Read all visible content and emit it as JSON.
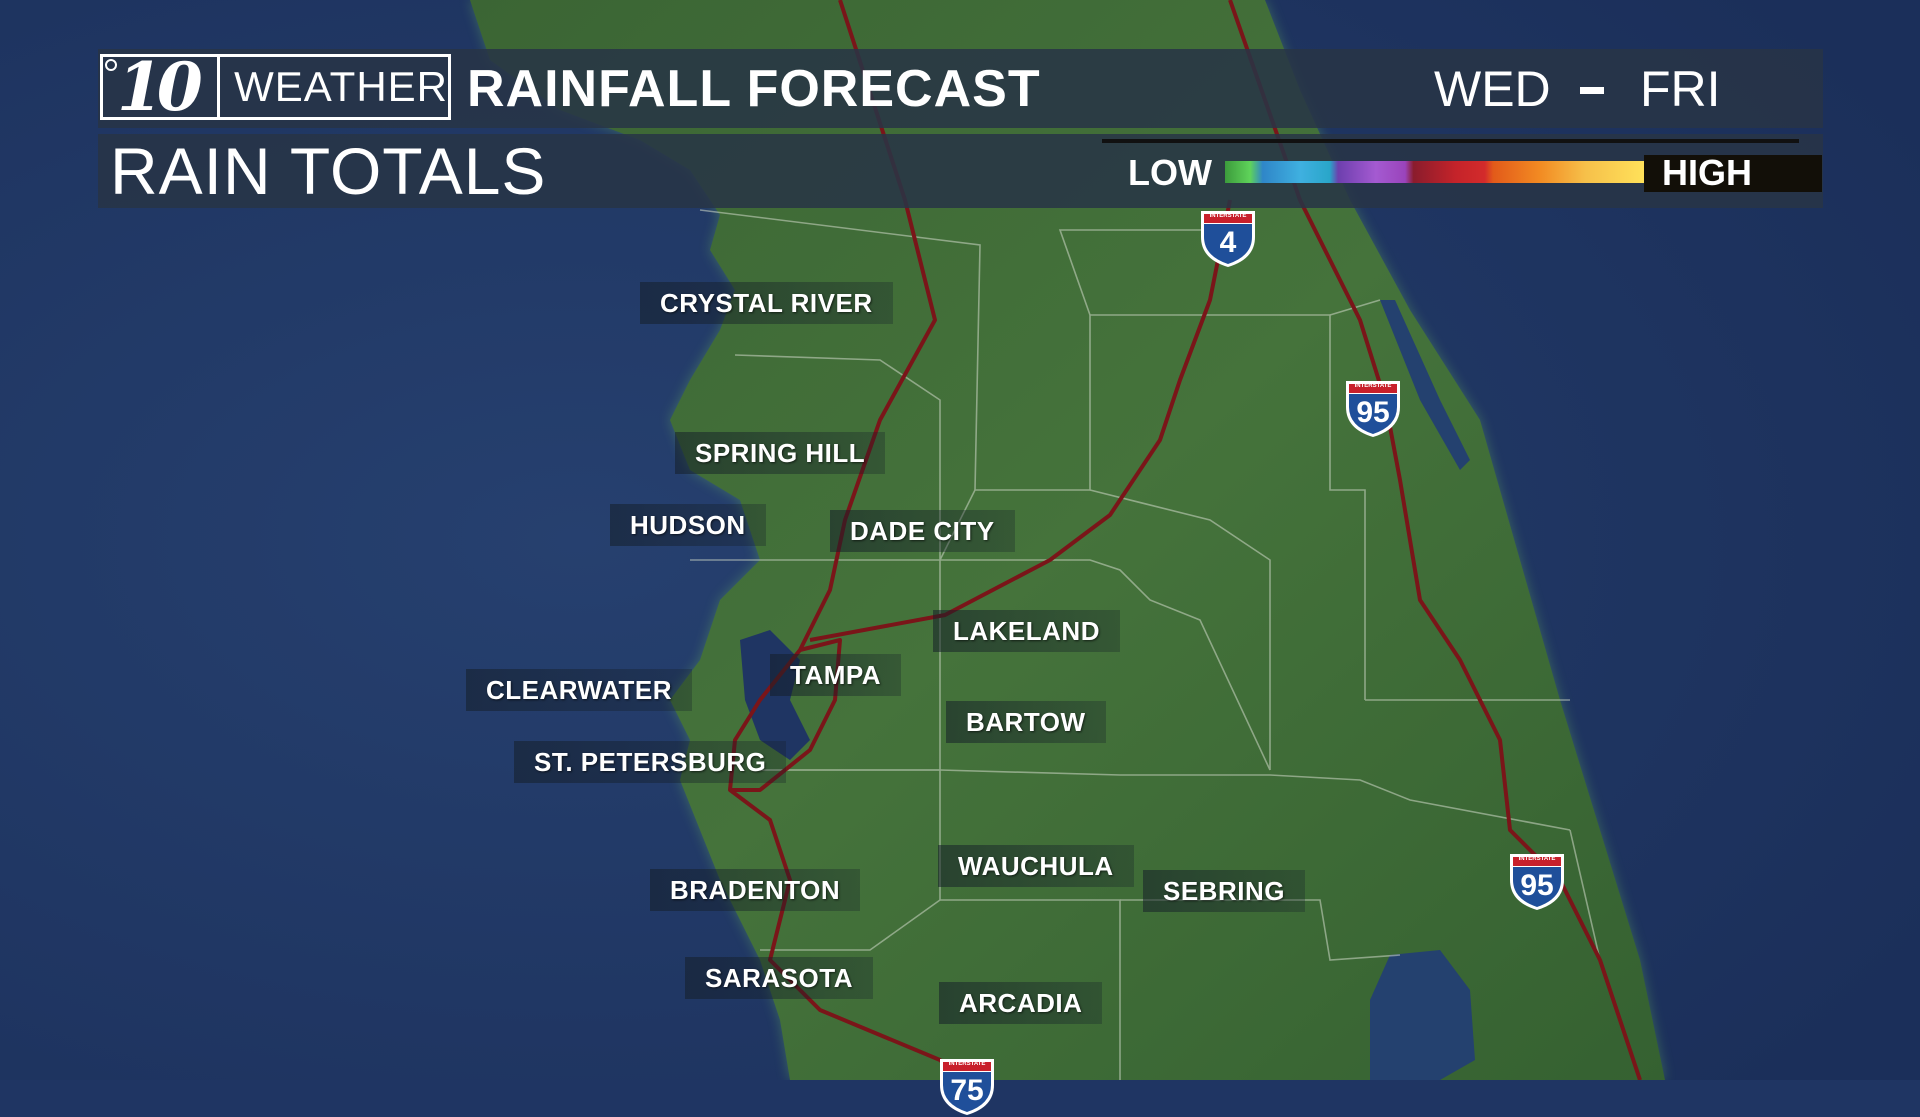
{
  "header": {
    "logo_number": "10",
    "logo_word": "WEATHER",
    "title": "RAINFALL FORECAST",
    "day_start": "WED",
    "day_end": "FRI"
  },
  "subheader": {
    "title": "RAIN TOTALS",
    "scale_low": "LOW",
    "scale_high": "HIGH"
  },
  "cities": [
    "CRYSTAL RIVER",
    "SPRING HILL",
    "HUDSON",
    "DADE CITY",
    "LAKELAND",
    "TAMPA",
    "CLEARWATER",
    "BARTOW",
    "ST. PETERSBURG",
    "WAUCHULA",
    "SEBRING",
    "BRADENTON",
    "SARASOTA",
    "ARCADIA"
  ],
  "shields": {
    "top_text": "INTERSTATE",
    "i4": "4",
    "i95_north": "95",
    "i95_south": "95",
    "i75": "75"
  },
  "colors": {
    "ocean": "#1f3563",
    "land": "#3f6a38",
    "highway": "#7a1519",
    "panel": "#283446"
  }
}
